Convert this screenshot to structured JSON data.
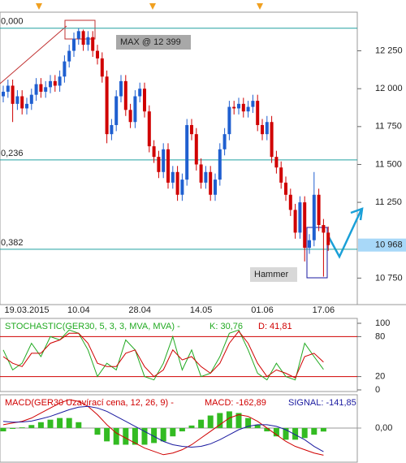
{
  "chart_data": [
    {
      "type": "candlestick",
      "categories": [
        null,
        null,
        null,
        null,
        null,
        "19.03.2015",
        null,
        null,
        null,
        null,
        null,
        null,
        null,
        null,
        null,
        null,
        "10.04",
        null,
        null,
        null,
        null,
        null,
        null,
        null,
        null,
        null,
        null,
        null,
        null,
        "28.04",
        null,
        null,
        null,
        null,
        null,
        null,
        null,
        null,
        null,
        null,
        null,
        null,
        "14.05",
        null,
        null,
        null,
        null,
        null,
        null,
        null,
        null,
        null,
        null,
        null,
        null,
        "01.06",
        null,
        null,
        null,
        null,
        null,
        null,
        null,
        null,
        null,
        null,
        null,
        null,
        "17.06",
        null
      ],
      "open": [
        11950,
        11980,
        12020,
        11900,
        11950,
        11870,
        11900,
        11960,
        12030,
        11980,
        12010,
        12050,
        12020,
        12080,
        12180,
        12250,
        12330,
        12380,
        12290,
        12340,
        12250,
        12200,
        12080,
        11700,
        11760,
        11950,
        12050,
        11860,
        11780,
        11950,
        12000,
        11850,
        11620,
        11550,
        11450,
        11600,
        11380,
        11450,
        11300,
        11400,
        11760,
        11700,
        11500,
        11380,
        11450,
        11300,
        11400,
        11600,
        11700,
        11880,
        11870,
        11900,
        11850,
        11880,
        11920,
        11760,
        11700,
        11780,
        11550,
        11480,
        11380,
        11300,
        11200,
        11050,
        11250,
        10950,
        11000,
        11300,
        11100,
        11050
      ],
      "high": [
        12020,
        12060,
        12060,
        11990,
        11990,
        11940,
        12000,
        12070,
        12070,
        12050,
        12090,
        12090,
        12120,
        12220,
        12290,
        12370,
        12399,
        12390,
        12380,
        12380,
        12290,
        12240,
        12120,
        11800,
        11990,
        12090,
        12090,
        11900,
        11990,
        12040,
        12040,
        11890,
        11660,
        11590,
        11640,
        11640,
        11490,
        11490,
        11440,
        11800,
        11800,
        11740,
        11540,
        11490,
        11490,
        11440,
        11640,
        11740,
        11920,
        11920,
        11940,
        11940,
        11920,
        11960,
        11960,
        11800,
        11820,
        11820,
        11590,
        11520,
        11420,
        11340,
        11240,
        11290,
        11290,
        11040,
        11450,
        11340,
        11140,
        11090
      ],
      "low": [
        11910,
        11940,
        11780,
        11860,
        11830,
        11830,
        11860,
        11920,
        11940,
        11940,
        11970,
        11980,
        11980,
        12040,
        12140,
        12210,
        12290,
        12250,
        12250,
        12210,
        12160,
        12040,
        11640,
        11660,
        11720,
        11910,
        11820,
        11740,
        11740,
        11910,
        11810,
        11580,
        11510,
        11410,
        11410,
        11340,
        11340,
        11260,
        11260,
        11360,
        11660,
        11460,
        11340,
        11340,
        11260,
        11260,
        11360,
        11560,
        11660,
        11830,
        11830,
        11810,
        11810,
        11840,
        11720,
        11660,
        11660,
        11510,
        11440,
        11340,
        11260,
        11160,
        11010,
        11010,
        10860,
        10910,
        10960,
        11060,
        10760,
        10930
      ],
      "close": [
        11980,
        12020,
        11900,
        11950,
        11870,
        11900,
        11960,
        12030,
        11980,
        12010,
        12050,
        12020,
        12080,
        12180,
        12250,
        12330,
        12380,
        12290,
        12340,
        12250,
        12200,
        12080,
        11700,
        11760,
        11950,
        12050,
        11860,
        11780,
        11950,
        12000,
        11850,
        11620,
        11550,
        11450,
        11600,
        11380,
        11450,
        11300,
        11400,
        11760,
        11700,
        11500,
        11380,
        11450,
        11300,
        11400,
        11600,
        11700,
        11880,
        11870,
        11900,
        11850,
        11880,
        11920,
        11760,
        11700,
        11780,
        11550,
        11480,
        11380,
        11300,
        11200,
        11050,
        11250,
        10950,
        11000,
        11300,
        11100,
        11050,
        10968
      ],
      "up_color": "#1f5fd0",
      "down_color": "#d00000",
      "ylim": [
        10575,
        12505
      ],
      "yticks": [
        {
          "value": 12250,
          "label": "12 250"
        },
        {
          "value": 12000,
          "label": "12 000"
        },
        {
          "value": 11750,
          "label": "11 750"
        },
        {
          "value": 11500,
          "label": "11 500"
        },
        {
          "value": 11250,
          "label": "11 250"
        },
        {
          "value": 10750,
          "label": "10 750"
        }
      ],
      "last_price": {
        "value": 10968,
        "label": "10 968"
      },
      "fib_levels": [
        {
          "value": 12399,
          "label": "0,000"
        },
        {
          "value": 11530,
          "label": "0,236"
        },
        {
          "value": 10940,
          "label": "0,382"
        }
      ],
      "annotations": [
        "MAX @ 12 399",
        "Hammer"
      ]
    },
    {
      "type": "line",
      "title": "STOCHASTIC(GER30, 5, 3, 3, MVA, MVA) -",
      "x": [
        0,
        2,
        4,
        6,
        8,
        10,
        12,
        14,
        16,
        18,
        20,
        22,
        24,
        26,
        28,
        30,
        32,
        34,
        36,
        38,
        40,
        42,
        44,
        46,
        48,
        50,
        52,
        54,
        56,
        58,
        60,
        62,
        64,
        66,
        68
      ],
      "series": [
        {
          "name": "K: 30,76",
          "color": "#22aa22",
          "values": [
            60,
            30,
            40,
            70,
            50,
            80,
            75,
            90,
            85,
            60,
            20,
            40,
            30,
            75,
            60,
            20,
            15,
            40,
            80,
            30,
            60,
            20,
            25,
            50,
            85,
            90,
            60,
            25,
            15,
            40,
            20,
            15,
            70,
            50,
            30.76
          ]
        },
        {
          "name": "D: 41,81",
          "color": "#d00000",
          "values": [
            50,
            40,
            35,
            55,
            55,
            70,
            75,
            85,
            85,
            70,
            40,
            35,
            35,
            55,
            60,
            35,
            20,
            30,
            60,
            45,
            50,
            35,
            25,
            40,
            70,
            88,
            70,
            40,
            20,
            30,
            25,
            18,
            50,
            55,
            41.81
          ]
        }
      ],
      "ylim": [
        0,
        100
      ],
      "yticks": [
        100,
        80,
        20,
        0
      ],
      "levels": [
        80,
        20
      ]
    },
    {
      "type": "macd",
      "title": "MACD(GER30 Uzavírací cena, 12, 26, 9) -",
      "x": [
        0,
        2,
        4,
        6,
        8,
        10,
        12,
        14,
        16,
        18,
        20,
        22,
        24,
        26,
        28,
        30,
        32,
        34,
        36,
        38,
        40,
        42,
        44,
        46,
        48,
        50,
        52,
        54,
        56,
        58,
        60,
        62,
        64,
        66,
        68
      ],
      "histogram": {
        "color": "#33bb22",
        "values": [
          -20,
          -5,
          4,
          18,
          35,
          50,
          60,
          60,
          35,
          0,
          -40,
          -80,
          -100,
          -100,
          -100,
          -100,
          -90,
          -80,
          -50,
          -20,
          15,
          50,
          75,
          90,
          100,
          90,
          60,
          20,
          -20,
          -50,
          -70,
          -70,
          -60,
          -40,
          -21
        ]
      },
      "series": [
        {
          "name": "MACD: -162,89",
          "color": "#d00000",
          "values": [
            20,
            30,
            40,
            60,
            90,
            120,
            150,
            170,
            160,
            130,
            80,
            20,
            -30,
            -60,
            -90,
            -120,
            -140,
            -160,
            -150,
            -130,
            -100,
            -60,
            -20,
            20,
            60,
            80,
            70,
            40,
            0,
            -40,
            -80,
            -110,
            -130,
            -150,
            -162.89
          ]
        },
        {
          "name": "SIGNAL: -141,85",
          "color": "#1a1aa0",
          "values": [
            40,
            35,
            36,
            42,
            55,
            70,
            90,
            110,
            125,
            130,
            120,
            100,
            70,
            40,
            10,
            -20,
            -50,
            -80,
            -100,
            -110,
            -115,
            -110,
            -95,
            -70,
            -40,
            -10,
            10,
            20,
            20,
            10,
            -10,
            -40,
            -70,
            -110,
            -141.85
          ]
        }
      ],
      "ylim": [
        -200,
        180
      ],
      "yticks": [
        {
          "value": 0,
          "label": "0,00"
        }
      ]
    }
  ]
}
